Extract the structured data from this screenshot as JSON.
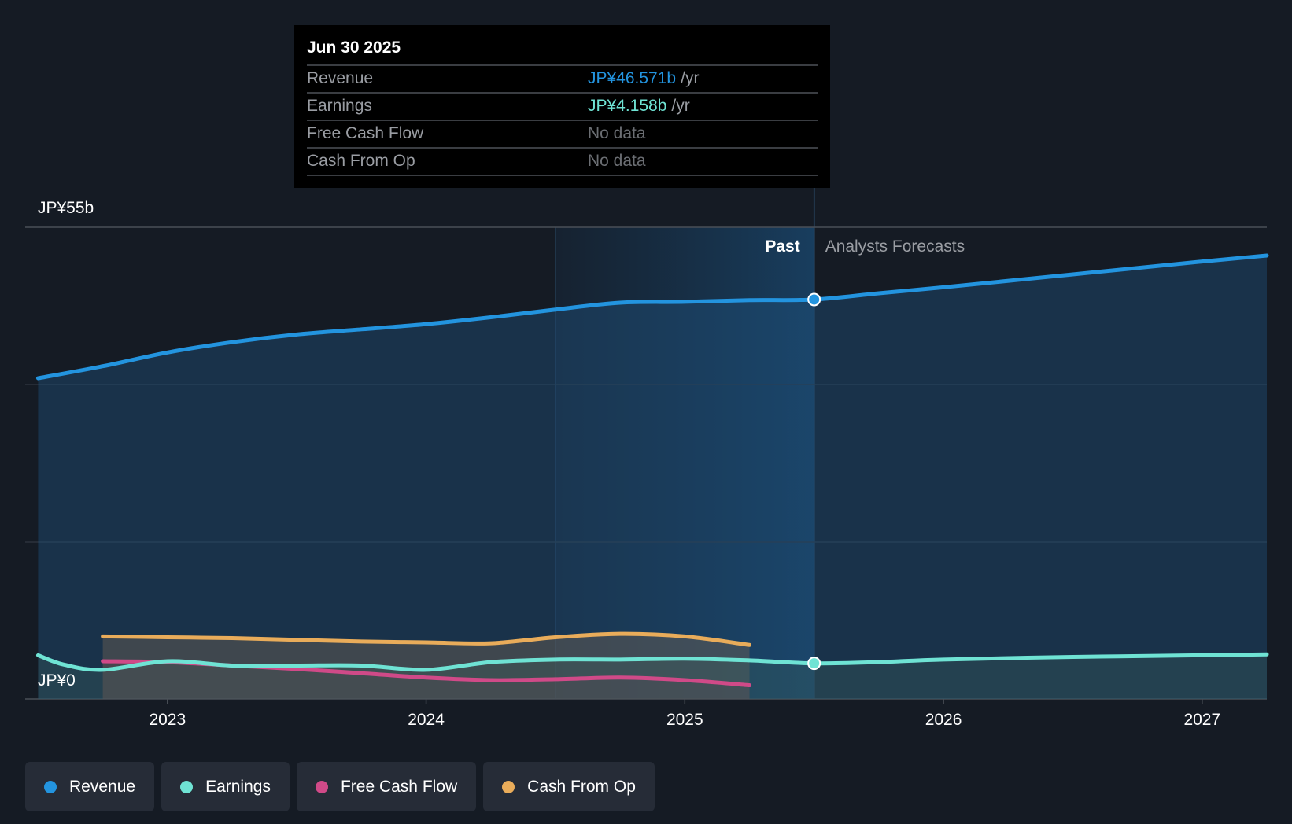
{
  "colors": {
    "revenue": "#2394df",
    "earnings": "#6fe3d4",
    "free_cash_flow": "#d04a88",
    "cash_from_op": "#e9ac5a",
    "no_data": "#6b6e73"
  },
  "tooltip": {
    "date": "Jun 30 2025",
    "rows": [
      {
        "label": "Revenue",
        "value": "JP¥46.571b",
        "unit": "/yr"
      },
      {
        "label": "Earnings",
        "value": "JP¥4.158b",
        "unit": "/yr"
      },
      {
        "label": "Free Cash Flow",
        "value": "No data",
        "unit": ""
      },
      {
        "label": "Cash From Op",
        "value": "No data",
        "unit": ""
      }
    ]
  },
  "legend": [
    {
      "label": "Revenue",
      "color_key": "revenue"
    },
    {
      "label": "Earnings",
      "color_key": "earnings"
    },
    {
      "label": "Free Cash Flow",
      "color_key": "free_cash_flow"
    },
    {
      "label": "Cash From Op",
      "color_key": "cash_from_op"
    }
  ],
  "chart_data": {
    "type": "line",
    "title": "",
    "y_unit": "JP¥ billions",
    "ylim": [
      0,
      55
    ],
    "y_tick_labels": [
      {
        "value": 55,
        "label": "JP¥55b"
      },
      {
        "value": 0,
        "label": "JP¥0"
      }
    ],
    "xlim": [
      2022.45,
      2027.25
    ],
    "x_ticks": [
      2023,
      2024,
      2025,
      2026,
      2027
    ],
    "past_label": "Past",
    "forecast_label": "Analysts Forecasts",
    "divider_x": 2025.5,
    "highlight_start_x": 2024.5,
    "series": [
      {
        "name": "Revenue",
        "color_key": "revenue",
        "points": [
          [
            2022.5,
            37.4
          ],
          [
            2022.75,
            38.8
          ],
          [
            2023.0,
            40.4
          ],
          [
            2023.25,
            41.6
          ],
          [
            2023.5,
            42.5
          ],
          [
            2023.75,
            43.1
          ],
          [
            2024.0,
            43.7
          ],
          [
            2024.25,
            44.5
          ],
          [
            2024.5,
            45.4
          ],
          [
            2024.75,
            46.2
          ],
          [
            2025.0,
            46.3
          ],
          [
            2025.25,
            46.5
          ],
          [
            2025.5,
            46.57
          ],
          [
            2025.75,
            47.3
          ],
          [
            2026.0,
            48.0
          ],
          [
            2026.5,
            49.5
          ],
          [
            2027.0,
            51.0
          ],
          [
            2027.25,
            51.7
          ]
        ]
      },
      {
        "name": "Earnings",
        "color_key": "earnings",
        "points": [
          [
            2022.5,
            5.1
          ],
          [
            2022.6,
            4.0
          ],
          [
            2022.75,
            3.4
          ],
          [
            2023.0,
            4.4
          ],
          [
            2023.25,
            3.9
          ],
          [
            2023.5,
            3.9
          ],
          [
            2023.75,
            3.9
          ],
          [
            2024.0,
            3.4
          ],
          [
            2024.25,
            4.3
          ],
          [
            2024.5,
            4.6
          ],
          [
            2024.75,
            4.6
          ],
          [
            2025.0,
            4.7
          ],
          [
            2025.25,
            4.5
          ],
          [
            2025.5,
            4.158
          ],
          [
            2025.75,
            4.3
          ],
          [
            2026.0,
            4.6
          ],
          [
            2026.5,
            4.9
          ],
          [
            2027.0,
            5.1
          ],
          [
            2027.25,
            5.2
          ]
        ]
      },
      {
        "name": "Free Cash Flow",
        "color_key": "free_cash_flow",
        "points": [
          [
            2022.75,
            4.4
          ],
          [
            2023.0,
            4.3
          ],
          [
            2023.25,
            3.9
          ],
          [
            2023.5,
            3.5
          ],
          [
            2023.75,
            3.0
          ],
          [
            2024.0,
            2.5
          ],
          [
            2024.25,
            2.2
          ],
          [
            2024.5,
            2.3
          ],
          [
            2024.75,
            2.5
          ],
          [
            2025.0,
            2.2
          ],
          [
            2025.25,
            1.6
          ]
        ]
      },
      {
        "name": "Cash From Op",
        "color_key": "cash_from_op",
        "points": [
          [
            2022.75,
            7.3
          ],
          [
            2023.0,
            7.2
          ],
          [
            2023.25,
            7.1
          ],
          [
            2023.5,
            6.9
          ],
          [
            2023.75,
            6.7
          ],
          [
            2024.0,
            6.6
          ],
          [
            2024.25,
            6.5
          ],
          [
            2024.5,
            7.2
          ],
          [
            2024.75,
            7.6
          ],
          [
            2025.0,
            7.3
          ],
          [
            2025.25,
            6.3
          ]
        ]
      }
    ]
  }
}
